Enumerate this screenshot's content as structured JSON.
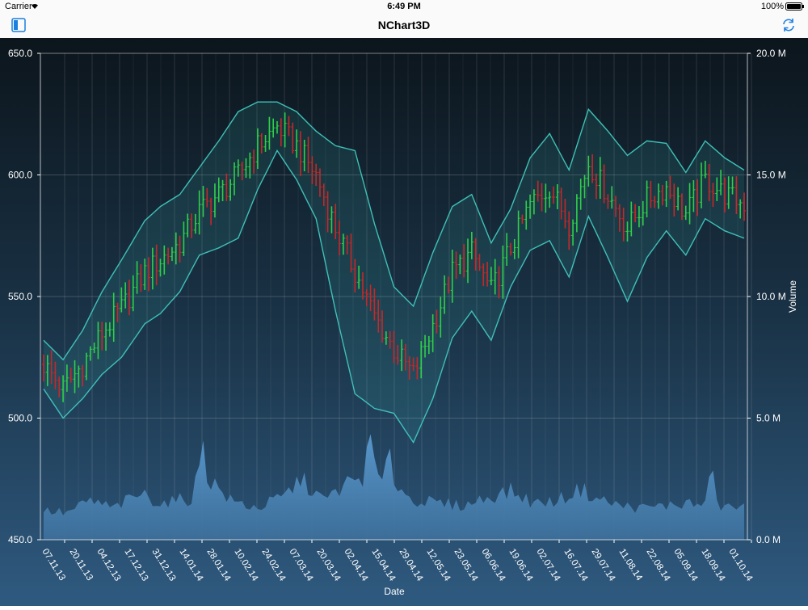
{
  "statusbar": {
    "carrier": "Carrier",
    "time": "6:49 PM",
    "battery": "100%"
  },
  "navbar": {
    "title": "NChart3D",
    "left_icon": "sidebar-toggle-icon",
    "right_icon": "refresh-icon"
  },
  "colors": {
    "accent": "#1a7fe0",
    "background_top": "#0d1820",
    "background_bottom": "#2c5478",
    "band": "#3fc1b8",
    "up": "#2fcf4a",
    "down": "#c62828",
    "volume": "#4a86b8"
  },
  "chart_data": {
    "type": "ohlc",
    "xlabel": "Date",
    "ylabel": "",
    "y2label": "Volume",
    "ylim": [
      450,
      650
    ],
    "y2lim": [
      0,
      20
    ],
    "yticks": [
      "450.0",
      "500.0",
      "550.0",
      "600.0",
      "650.0"
    ],
    "y2ticks": [
      "0.0 M",
      "5.0 M",
      "10.0 M",
      "15.0 M",
      "20.0 M"
    ],
    "xticks": [
      "07.11.13",
      "20.11.13",
      "04.12.13",
      "17.12.13",
      "31.12.13",
      "14.01.14",
      "28.01.14",
      "10.02.14",
      "24.02.14",
      "07.03.14",
      "20.03.14",
      "02.04.14",
      "15.04.14",
      "29.04.14",
      "12.05.14",
      "23.05.14",
      "06.06.14",
      "19.06.14",
      "02.07.14",
      "16.07.14",
      "29.07.14",
      "11.08.14",
      "22.08.14",
      "05.09.14",
      "18.09.14",
      "01.10.14"
    ],
    "price_key": [
      [
        0,
        522
      ],
      [
        5,
        512
      ],
      [
        10,
        522
      ],
      [
        15,
        535
      ],
      [
        20,
        545
      ],
      [
        26,
        560
      ],
      [
        30,
        565
      ],
      [
        35,
        572
      ],
      [
        40,
        585
      ],
      [
        45,
        592
      ],
      [
        50,
        600
      ],
      [
        55,
        612
      ],
      [
        60,
        620
      ],
      [
        65,
        612
      ],
      [
        70,
        600
      ],
      [
        75,
        578
      ],
      [
        80,
        560
      ],
      [
        85,
        542
      ],
      [
        90,
        528
      ],
      [
        95,
        518
      ],
      [
        100,
        538
      ],
      [
        105,
        560
      ],
      [
        110,
        568
      ],
      [
        115,
        552
      ],
      [
        120,
        570
      ],
      [
        125,
        588
      ],
      [
        130,
        595
      ],
      [
        135,
        580
      ],
      [
        140,
        605
      ],
      [
        145,
        592
      ],
      [
        150,
        578
      ],
      [
        155,
        590
      ],
      [
        160,
        595
      ],
      [
        165,
        584
      ],
      [
        170,
        598
      ],
      [
        175,
        592
      ],
      [
        180,
        588
      ]
    ],
    "band_width_key": [
      [
        0,
        10
      ],
      [
        10,
        14
      ],
      [
        20,
        20
      ],
      [
        30,
        22
      ],
      [
        40,
        18
      ],
      [
        50,
        26
      ],
      [
        60,
        10
      ],
      [
        70,
        18
      ],
      [
        80,
        50
      ],
      [
        90,
        26
      ],
      [
        100,
        30
      ],
      [
        110,
        24
      ],
      [
        120,
        16
      ],
      [
        130,
        22
      ],
      [
        140,
        22
      ],
      [
        150,
        30
      ],
      [
        160,
        18
      ],
      [
        170,
        16
      ],
      [
        180,
        14
      ]
    ],
    "volume_key": [
      [
        0,
        1.2
      ],
      [
        6,
        1.1
      ],
      [
        12,
        1.6
      ],
      [
        18,
        1.3
      ],
      [
        25,
        1.9
      ],
      [
        30,
        1.5
      ],
      [
        38,
        1.7
      ],
      [
        40,
        2.9
      ],
      [
        41,
        4.5
      ],
      [
        42,
        2.6
      ],
      [
        48,
        1.6
      ],
      [
        55,
        1.3
      ],
      [
        62,
        1.8
      ],
      [
        66,
        2.5
      ],
      [
        72,
        1.6
      ],
      [
        78,
        2.3
      ],
      [
        82,
        2.6
      ],
      [
        84,
        4.0
      ],
      [
        85,
        3.2
      ],
      [
        87,
        2.1
      ],
      [
        88,
        3.0
      ],
      [
        89,
        4.3
      ],
      [
        90,
        2.4
      ],
      [
        94,
        1.7
      ],
      [
        100,
        1.5
      ],
      [
        108,
        1.4
      ],
      [
        115,
        1.8
      ],
      [
        120,
        2.0
      ],
      [
        126,
        1.5
      ],
      [
        132,
        1.6
      ],
      [
        138,
        2.1
      ],
      [
        142,
        1.7
      ],
      [
        148,
        1.4
      ],
      [
        154,
        1.3
      ],
      [
        160,
        1.4
      ],
      [
        166,
        1.5
      ],
      [
        170,
        1.4
      ],
      [
        172,
        3.3
      ],
      [
        173,
        1.4
      ],
      [
        180,
        1.3
      ]
    ]
  }
}
